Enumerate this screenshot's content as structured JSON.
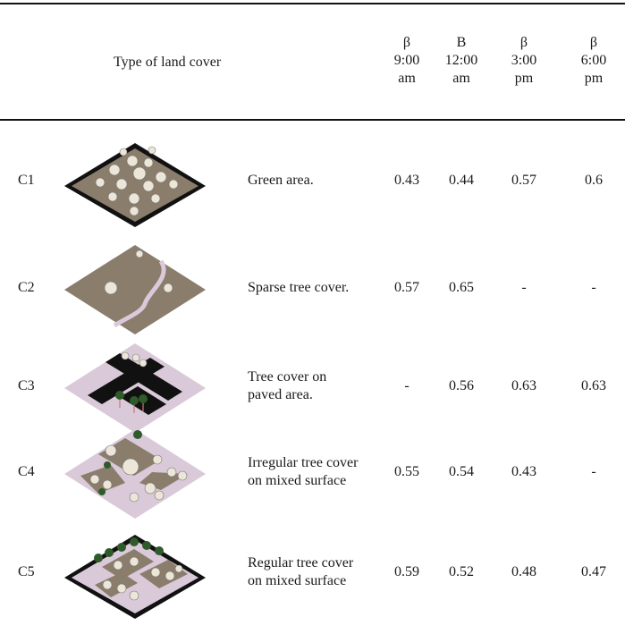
{
  "header": {
    "title": "Type of land cover",
    "columns": [
      {
        "symbol": "β",
        "time": "9:00",
        "period": "am"
      },
      {
        "symbol": "B",
        "time": "12:00",
        "period": "am"
      },
      {
        "symbol": "β",
        "time": "3:00",
        "period": "pm"
      },
      {
        "symbol": "β",
        "time": "6:00",
        "period": "pm"
      }
    ]
  },
  "rows": [
    {
      "code": "C1",
      "icon": "green-area-thumbnail",
      "desc": "Green area.",
      "values": [
        "0.43",
        "0.44",
        "0.57",
        "0.6"
      ]
    },
    {
      "code": "C2",
      "icon": "sparse-tree-cover-thumbnail",
      "desc": "Sparse tree cover.",
      "values": [
        "0.57",
        "0.65",
        "-",
        "-"
      ]
    },
    {
      "code": "C3",
      "icon": "tree-cover-paved-thumbnail",
      "desc": "Tree cover on paved area.",
      "values": [
        "-",
        "0.56",
        "0.63",
        "0.63"
      ]
    },
    {
      "code": "C4",
      "icon": "irregular-tree-cover-thumbnail",
      "desc": "Irregular tree cover on mixed surface",
      "values": [
        "0.55",
        "0.54",
        "0.43",
        "-"
      ]
    },
    {
      "code": "C5",
      "icon": "regular-tree-cover-thumbnail",
      "desc": "Regular tree cover on mixed surface",
      "values": [
        "0.59",
        "0.52",
        "0.48",
        "0.47"
      ]
    }
  ],
  "colors": {
    "soil": "#8a7d6c",
    "paving": "#d9c9d9",
    "road": "#111111",
    "tree": "#ece6d8",
    "palm": "#2f5a2a"
  }
}
